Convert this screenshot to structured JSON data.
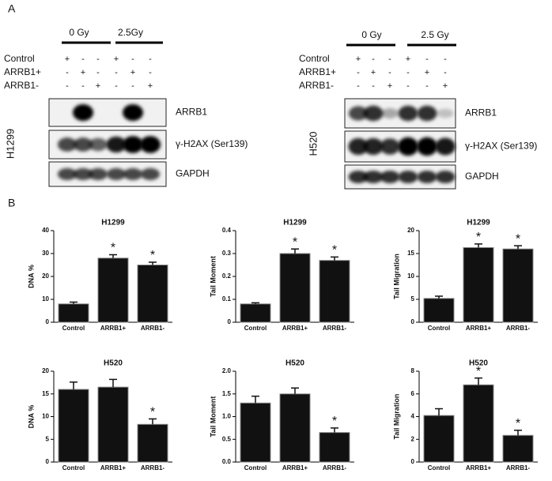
{
  "panels": {
    "a": "A",
    "b": "B"
  },
  "blots": [
    {
      "cell_line": "H1299",
      "doses": [
        "0 Gy",
        "2.5Gy"
      ],
      "conditions": [
        {
          "label": "Control",
          "signs": [
            "+",
            "-",
            "-",
            "+",
            "-",
            "-"
          ]
        },
        {
          "label": "ARRB1+",
          "signs": [
            "-",
            "+",
            "-",
            "-",
            "+",
            "-"
          ]
        },
        {
          "label": "ARRB1-",
          "signs": [
            "-",
            "-",
            "+",
            "-",
            "-",
            "+"
          ]
        }
      ],
      "bands": [
        "ARRB1",
        "γ-H2AX (Ser139)",
        "GAPDH"
      ]
    },
    {
      "cell_line": "H520",
      "doses": [
        "0 Gy",
        "2.5 Gy"
      ],
      "conditions": [
        {
          "label": "Control",
          "signs": [
            "+",
            "-",
            "-",
            "+",
            "-",
            "-"
          ]
        },
        {
          "label": "ARRB1+",
          "signs": [
            "-",
            "+",
            "-",
            "-",
            "+",
            "-"
          ]
        },
        {
          "label": "ARRB1-",
          "signs": [
            "-",
            "-",
            "+",
            "-",
            "-",
            "+"
          ]
        }
      ],
      "bands": [
        "ARRB1",
        "γ-H2AX (Ser139)",
        "GAPDH"
      ]
    }
  ],
  "chart_data": [
    {
      "type": "bar",
      "title": "H1299",
      "y_label": "DNA %",
      "categories": [
        "Control",
        "ARRB1+",
        "ARRB1-"
      ],
      "values": [
        8,
        28,
        25
      ],
      "errors": [
        0.8,
        1.5,
        1.2
      ],
      "significance": [
        null,
        "*",
        "*"
      ],
      "color": "#111111",
      "ylim": [
        0,
        40
      ],
      "yticks": [
        0,
        10,
        20,
        30,
        40
      ]
    },
    {
      "type": "bar",
      "title": "H1299",
      "y_label": "Tail Moment",
      "categories": [
        "Control",
        "ARRB1+",
        "ARRB1-"
      ],
      "values": [
        0.08,
        0.3,
        0.27
      ],
      "errors": [
        0.005,
        0.02,
        0.015
      ],
      "significance": [
        null,
        "*",
        "*"
      ],
      "color": "#111111",
      "ylim": [
        0,
        0.4
      ],
      "yticks": [
        0,
        0.1,
        0.2,
        0.3,
        0.4
      ]
    },
    {
      "type": "bar",
      "title": "H1299",
      "y_label": "Tail Migration",
      "categories": [
        "Control",
        "ARRB1+",
        "ARRB1-"
      ],
      "values": [
        5.2,
        16.3,
        16.0
      ],
      "errors": [
        0.5,
        0.8,
        0.7
      ],
      "significance": [
        null,
        "*",
        "*"
      ],
      "color": "#111111",
      "ylim": [
        0,
        20
      ],
      "yticks": [
        0,
        5,
        10,
        15,
        20
      ]
    },
    {
      "type": "bar",
      "title": "H520",
      "y_label": "DNA %",
      "categories": [
        "Control",
        "ARRB1+",
        "ARRB1-"
      ],
      "values": [
        16,
        16.5,
        8.3
      ],
      "errors": [
        1.6,
        1.7,
        1.2
      ],
      "significance": [
        null,
        null,
        "*"
      ],
      "color": "#111111",
      "ylim": [
        0,
        20
      ],
      "yticks": [
        0,
        5,
        10,
        15,
        20
      ]
    },
    {
      "type": "bar",
      "title": "H520",
      "y_label": "Tail Moment",
      "categories": [
        "Control",
        "ARRB1+",
        "ARRB1-"
      ],
      "values": [
        1.3,
        1.5,
        0.65
      ],
      "errors": [
        0.15,
        0.13,
        0.1
      ],
      "significance": [
        null,
        null,
        "*"
      ],
      "color": "#111111",
      "ylim": [
        0,
        2
      ],
      "yticks": [
        {
          "value": 0,
          "label": "0.0"
        },
        0.5,
        {
          "value": 1,
          "label": "1.0"
        },
        1.5,
        {
          "value": 2,
          "label": "2.0"
        }
      ]
    },
    {
      "type": "bar",
      "title": "H520",
      "y_label": "Tail Migration",
      "categories": [
        "Control",
        "ARRB1+",
        "ARRB1-"
      ],
      "values": [
        4.1,
        6.8,
        2.35
      ],
      "errors": [
        0.6,
        0.6,
        0.45
      ],
      "significance": [
        null,
        "*",
        "*"
      ],
      "color": "#111111",
      "ylim": [
        0,
        8
      ],
      "yticks": [
        0,
        2,
        4,
        6,
        8
      ]
    }
  ]
}
